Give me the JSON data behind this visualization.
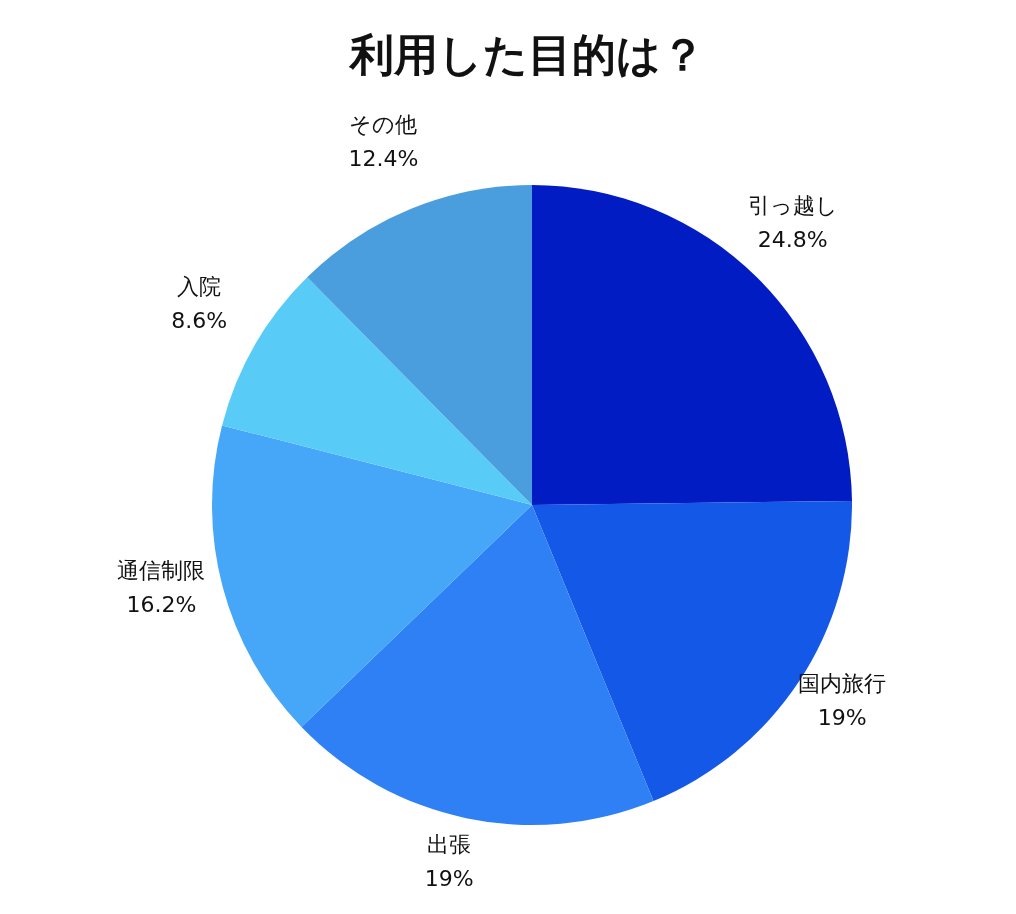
{
  "chart_data": {
    "type": "pie",
    "title": "利用した目的は？",
    "categories": [
      "引っ越し",
      "国内旅行",
      "出張",
      "通信制限",
      "入院",
      "その他"
    ],
    "values": [
      24.8,
      19,
      19,
      16.2,
      8.6,
      12.4
    ],
    "value_labels": [
      "24.8%",
      "19%",
      "19%",
      "16.2%",
      "8.6%",
      "12.4%"
    ],
    "colors": [
      "#021cc4",
      "#1358e6",
      "#2f80f5",
      "#46a6f7",
      "#59cbf7",
      "#4a9ede"
    ]
  }
}
